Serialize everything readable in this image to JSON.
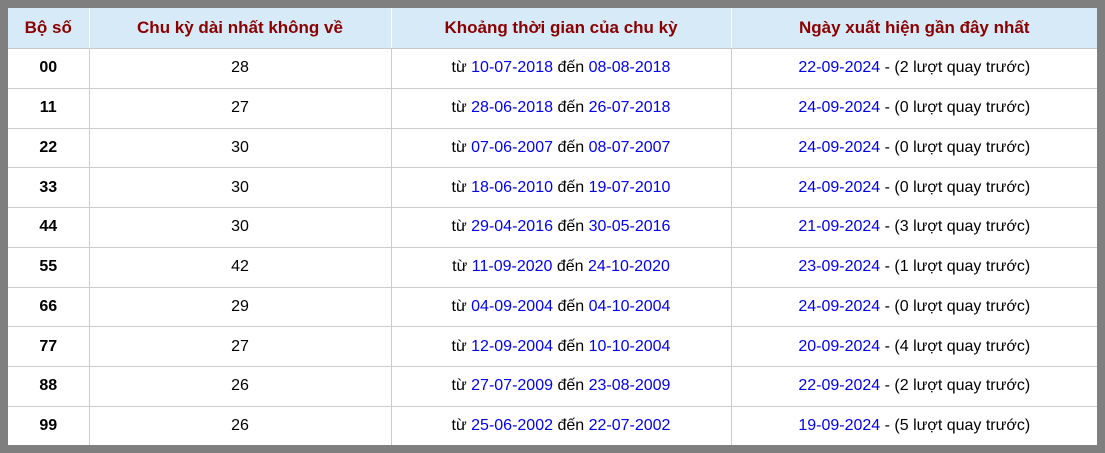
{
  "colors": {
    "frame_border": "#7f7f7f",
    "header_background": "#d6ebf7",
    "header_text": "#8b0000",
    "link_blue": "#0000ee",
    "cell_border": "#cccccc",
    "body_text": "#000000"
  },
  "table": {
    "columns": [
      {
        "label": "Bộ số"
      },
      {
        "label": "Chu kỳ dài nhất không về"
      },
      {
        "label": "Khoảng thời gian của chu kỳ"
      },
      {
        "label": "Ngày xuất hiện gần đây nhất"
      }
    ],
    "rows": [
      {
        "pair": "00",
        "cycle": "28",
        "from_label": "từ",
        "from_date": "10-07-2018",
        "to_label": "đến",
        "to_date": "08-08-2018",
        "last_date": "22-09-2024",
        "last_note": "- (2 lượt quay trước)"
      },
      {
        "pair": "11",
        "cycle": "27",
        "from_label": "từ",
        "from_date": "28-06-2018",
        "to_label": "đến",
        "to_date": "26-07-2018",
        "last_date": "24-09-2024",
        "last_note": "- (0 lượt quay trước)"
      },
      {
        "pair": "22",
        "cycle": "30",
        "from_label": "từ",
        "from_date": "07-06-2007",
        "to_label": "đến",
        "to_date": "08-07-2007",
        "last_date": "24-09-2024",
        "last_note": "- (0 lượt quay trước)"
      },
      {
        "pair": "33",
        "cycle": "30",
        "from_label": "từ",
        "from_date": "18-06-2010",
        "to_label": "đến",
        "to_date": "19-07-2010",
        "last_date": "24-09-2024",
        "last_note": "- (0 lượt quay trước)"
      },
      {
        "pair": "44",
        "cycle": "30",
        "from_label": "từ",
        "from_date": "29-04-2016",
        "to_label": "đến",
        "to_date": "30-05-2016",
        "last_date": "21-09-2024",
        "last_note": "- (3 lượt quay trước)"
      },
      {
        "pair": "55",
        "cycle": "42",
        "from_label": "từ",
        "from_date": "11-09-2020",
        "to_label": "đến",
        "to_date": "24-10-2020",
        "last_date": "23-09-2024",
        "last_note": "- (1 lượt quay trước)"
      },
      {
        "pair": "66",
        "cycle": "29",
        "from_label": "từ",
        "from_date": "04-09-2004",
        "to_label": "đến",
        "to_date": "04-10-2004",
        "last_date": "24-09-2024",
        "last_note": "- (0 lượt quay trước)"
      },
      {
        "pair": "77",
        "cycle": "27",
        "from_label": "từ",
        "from_date": "12-09-2004",
        "to_label": "đến",
        "to_date": "10-10-2004",
        "last_date": "20-09-2024",
        "last_note": "- (4 lượt quay trước)"
      },
      {
        "pair": "88",
        "cycle": "26",
        "from_label": "từ",
        "from_date": "27-07-2009",
        "to_label": "đến",
        "to_date": "23-08-2009",
        "last_date": "22-09-2024",
        "last_note": "- (2 lượt quay trước)"
      },
      {
        "pair": "99",
        "cycle": "26",
        "from_label": "từ",
        "from_date": "25-06-2002",
        "to_label": "đến",
        "to_date": "22-07-2002",
        "last_date": "19-09-2024",
        "last_note": "- (5 lượt quay trước)"
      }
    ]
  }
}
